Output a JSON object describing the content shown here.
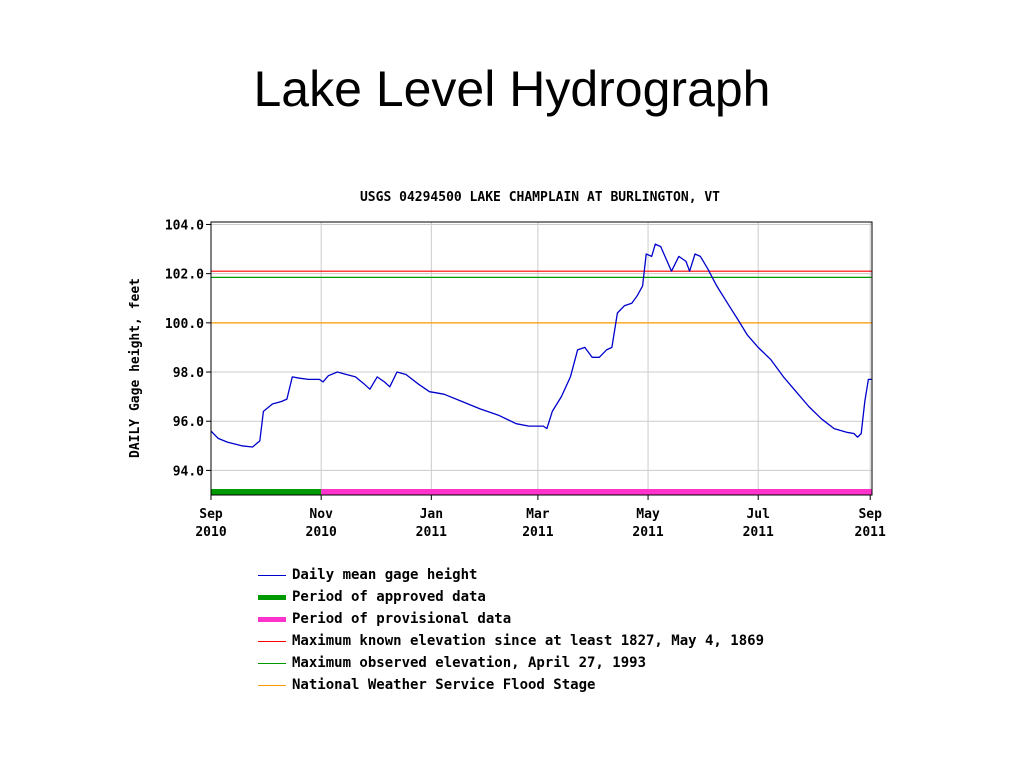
{
  "slide": {
    "title": "Lake Level Hydrograph"
  },
  "chart_data": {
    "type": "line",
    "title": "USGS 04294500 LAKE CHAMPLAIN AT BURLINGTON, VT",
    "ylabel": "DAILY Gage height, feet",
    "xlabel": "",
    "ylim": [
      93,
      104.1
    ],
    "y_ticks": [
      "104.0",
      "102.0",
      "100.0",
      "98.0",
      "96.0",
      "94.0"
    ],
    "x_ticks": [
      {
        "date": "2010-09-01",
        "label_top": "Sep",
        "label_bottom": "2010"
      },
      {
        "date": "2010-11-01",
        "label_top": "Nov",
        "label_bottom": "2010"
      },
      {
        "date": "2011-01-01",
        "label_top": "Jan",
        "label_bottom": "2011"
      },
      {
        "date": "2011-03-01",
        "label_top": "Mar",
        "label_bottom": "2011"
      },
      {
        "date": "2011-05-01",
        "label_top": "May",
        "label_bottom": "2011"
      },
      {
        "date": "2011-07-01",
        "label_top": "Jul",
        "label_bottom": "2011"
      },
      {
        "date": "2011-09-01",
        "label_top": "Sep",
        "label_bottom": "2011"
      }
    ],
    "xlim": [
      "2010-09-01",
      "2011-09-02"
    ],
    "grid": true,
    "series": [
      {
        "name": "Daily mean gage height",
        "color": "#0000cc",
        "points": [
          [
            "2010-09-01",
            95.6
          ],
          [
            "2010-09-05",
            95.3
          ],
          [
            "2010-09-10",
            95.15
          ],
          [
            "2010-09-18",
            95.0
          ],
          [
            "2010-09-24",
            94.95
          ],
          [
            "2010-09-28",
            95.2
          ],
          [
            "2010-09-30",
            96.4
          ],
          [
            "2010-10-05",
            96.7
          ],
          [
            "2010-10-10",
            96.8
          ],
          [
            "2010-10-13",
            96.9
          ],
          [
            "2010-10-16",
            97.8
          ],
          [
            "2010-10-20",
            97.75
          ],
          [
            "2010-10-25",
            97.7
          ],
          [
            "2010-10-31",
            97.7
          ],
          [
            "2010-11-02",
            97.6
          ],
          [
            "2010-11-05",
            97.85
          ],
          [
            "2010-11-10",
            98.0
          ],
          [
            "2010-11-15",
            97.9
          ],
          [
            "2010-11-20",
            97.8
          ],
          [
            "2010-11-25",
            97.5
          ],
          [
            "2010-11-28",
            97.3
          ],
          [
            "2010-12-02",
            97.8
          ],
          [
            "2010-12-06",
            97.6
          ],
          [
            "2010-12-09",
            97.4
          ],
          [
            "2010-12-13",
            98.0
          ],
          [
            "2010-12-18",
            97.9
          ],
          [
            "2010-12-25",
            97.5
          ],
          [
            "2010-12-31",
            97.2
          ],
          [
            "2011-01-08",
            97.1
          ],
          [
            "2011-01-18",
            96.8
          ],
          [
            "2011-01-28",
            96.5
          ],
          [
            "2011-02-07",
            96.25
          ],
          [
            "2011-02-17",
            95.9
          ],
          [
            "2011-02-24",
            95.8
          ],
          [
            "2011-03-04",
            95.8
          ],
          [
            "2011-03-06",
            95.7
          ],
          [
            "2011-03-09",
            96.4
          ],
          [
            "2011-03-14",
            97.0
          ],
          [
            "2011-03-19",
            97.8
          ],
          [
            "2011-03-23",
            98.9
          ],
          [
            "2011-03-27",
            99.0
          ],
          [
            "2011-03-31",
            98.6
          ],
          [
            "2011-04-04",
            98.6
          ],
          [
            "2011-04-08",
            98.9
          ],
          [
            "2011-04-11",
            99.0
          ],
          [
            "2011-04-14",
            100.4
          ],
          [
            "2011-04-18",
            100.7
          ],
          [
            "2011-04-22",
            100.8
          ],
          [
            "2011-04-25",
            101.1
          ],
          [
            "2011-04-28",
            101.5
          ],
          [
            "2011-04-30",
            102.8
          ],
          [
            "2011-05-03",
            102.7
          ],
          [
            "2011-05-05",
            103.2
          ],
          [
            "2011-05-08",
            103.1
          ],
          [
            "2011-05-11",
            102.6
          ],
          [
            "2011-05-14",
            102.1
          ],
          [
            "2011-05-18",
            102.7
          ],
          [
            "2011-05-22",
            102.5
          ],
          [
            "2011-05-24",
            102.1
          ],
          [
            "2011-05-27",
            102.8
          ],
          [
            "2011-05-30",
            102.7
          ],
          [
            "2011-06-03",
            102.2
          ],
          [
            "2011-06-08",
            101.5
          ],
          [
            "2011-06-14",
            100.8
          ],
          [
            "2011-06-20",
            100.1
          ],
          [
            "2011-06-25",
            99.5
          ],
          [
            "2011-07-01",
            99.0
          ],
          [
            "2011-07-08",
            98.5
          ],
          [
            "2011-07-15",
            97.8
          ],
          [
            "2011-07-22",
            97.2
          ],
          [
            "2011-07-29",
            96.6
          ],
          [
            "2011-08-05",
            96.1
          ],
          [
            "2011-08-12",
            95.7
          ],
          [
            "2011-08-19",
            95.55
          ],
          [
            "2011-08-23",
            95.5
          ],
          [
            "2011-08-25",
            95.35
          ],
          [
            "2011-08-27",
            95.5
          ],
          [
            "2011-08-29",
            96.8
          ],
          [
            "2011-08-31",
            97.7
          ],
          [
            "2011-09-02",
            97.7
          ]
        ]
      }
    ],
    "reference_lines": [
      {
        "name": "Maximum known elevation since at least 1827, May 4, 1869",
        "value": 102.1,
        "color": "#ff0000"
      },
      {
        "name": "Maximum observed elevation, April 27, 1993",
        "value": 101.85,
        "color": "#009900"
      },
      {
        "name": "National Weather Service Flood Stage",
        "value": 100.0,
        "color": "#ff9900"
      }
    ],
    "periods": [
      {
        "name": "Period of approved data",
        "start": "2010-09-01",
        "end": "2010-11-01",
        "color": "#009900"
      },
      {
        "name": "Period of provisional data",
        "start": "2010-11-01",
        "end": "2011-09-02",
        "color": "#ff33cc"
      }
    ],
    "legend": [
      {
        "label": "Daily mean gage height",
        "color": "#0000cc",
        "style": "thin"
      },
      {
        "label": "Period of approved data",
        "color": "#009900",
        "style": "thick"
      },
      {
        "label": "Period of provisional data",
        "color": "#ff33cc",
        "style": "thick"
      },
      {
        "label": "Maximum known elevation since at least 1827, May 4, 1869",
        "color": "#ff0000",
        "style": "thin"
      },
      {
        "label": "Maximum observed elevation, April 27, 1993",
        "color": "#009900",
        "style": "thin"
      },
      {
        "label": "National Weather Service Flood Stage",
        "color": "#ff9900",
        "style": "thin"
      }
    ],
    "legend_position": "bottom"
  }
}
